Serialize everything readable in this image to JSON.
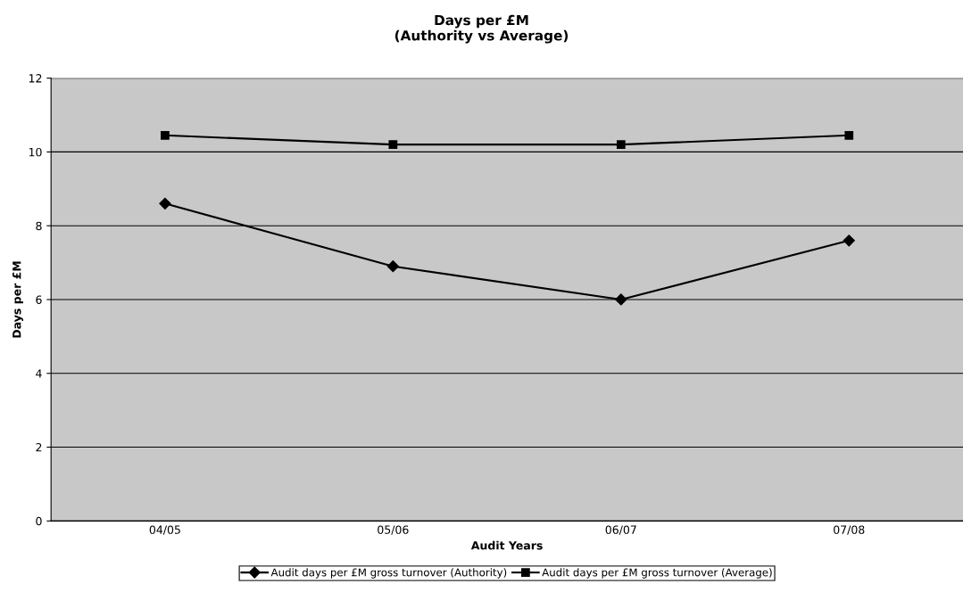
{
  "chart_data": {
    "type": "line",
    "title": "Days per £M\n(Authority vs Average)",
    "xlabel": "Audit Years",
    "ylabel": "Days per £M",
    "categories": [
      "04/05",
      "05/06",
      "06/07",
      "07/08"
    ],
    "series": [
      {
        "name": "Audit days per £M gross turnover (Authority)",
        "color": "#000000",
        "marker": "diamond",
        "values": [
          8.6,
          6.9,
          6.0,
          7.6
        ]
      },
      {
        "name": "Audit days per £M gross turnover (Average)",
        "color": "#000000",
        "marker": "square",
        "values": [
          10.45,
          10.2,
          10.2,
          10.45
        ]
      }
    ],
    "ylim": [
      0,
      12
    ],
    "yticks": [
      0,
      2,
      4,
      6,
      8,
      10,
      12
    ],
    "grid": "y",
    "legend": "bottom",
    "line_style": "solid"
  }
}
